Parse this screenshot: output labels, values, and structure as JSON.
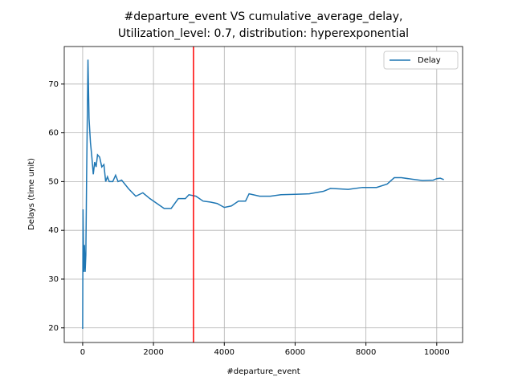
{
  "chart_data": {
    "type": "line",
    "title": [
      "#departure_event VS cumulative_average_delay,",
      "Utilization_level: 0.7, distribution: hyperexponential"
    ],
    "xlabel": "#departure_event",
    "ylabel": "Delays (time unit)",
    "series": [
      {
        "name": "Delay",
        "color": "#1f77b4",
        "x": [
          0,
          10,
          30,
          50,
          70,
          90,
          110,
          150,
          180,
          220,
          260,
          300,
          340,
          380,
          420,
          480,
          540,
          600,
          650,
          700,
          750,
          850,
          930,
          1000,
          1100,
          1300,
          1500,
          1700,
          1900,
          2100,
          2300,
          2500,
          2700,
          2900,
          3000,
          3200,
          3400,
          3600,
          3800,
          4000,
          4200,
          4400,
          4600,
          4700,
          5000,
          5300,
          5600,
          6000,
          6400,
          6800,
          7000,
          7500,
          7900,
          8300,
          8600,
          8800,
          9000,
          9300,
          9600,
          9900,
          10000,
          10100,
          10200
        ],
        "values": [
          19.8,
          44.3,
          31.5,
          37,
          31.5,
          35,
          50,
          75,
          63,
          58,
          55,
          51.5,
          54,
          53,
          55.5,
          55,
          53,
          53.5,
          50,
          51,
          50,
          50,
          51.3,
          50,
          50.3,
          48.5,
          47,
          47.7,
          46.5,
          45.5,
          44.5,
          44.5,
          46.5,
          46.5,
          47.3,
          47,
          46,
          45.8,
          45.5,
          44.7,
          45,
          46,
          46,
          47.5,
          47,
          47,
          47.3,
          47.4,
          47.5,
          48,
          48.6,
          48.4,
          48.8,
          48.8,
          49.5,
          50.8,
          50.8,
          50.5,
          50.2,
          50.3,
          50.6,
          50.7,
          50.4
        ]
      }
    ],
    "vline": {
      "x": 3130,
      "color": "red"
    },
    "xlim": [
      -520,
      10730
    ],
    "ylim": [
      17.0,
      77.7
    ],
    "xticks": [
      0,
      2000,
      4000,
      6000,
      8000,
      10000
    ],
    "yticks": [
      20,
      30,
      40,
      50,
      60,
      70
    ],
    "grid": true,
    "legend": "upper right"
  }
}
